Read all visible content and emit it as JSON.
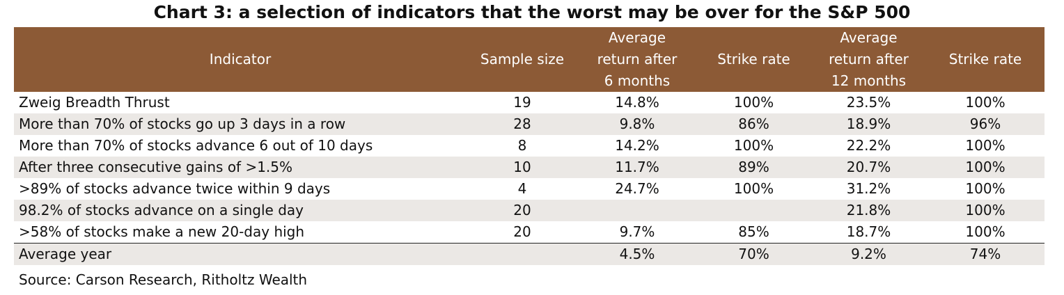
{
  "chart_data": {
    "type": "table",
    "title": "Chart 3: a selection of indicators that the worst may be over for the S&P 500",
    "columns": [
      "Indicator",
      "Sample size",
      "Average return after 6 months",
      "Strike rate",
      "Average return after 12 months",
      "Strike rate"
    ],
    "header_lines": [
      [
        "Indicator"
      ],
      [
        "Sample size"
      ],
      [
        "Average",
        "return after",
        "6 months"
      ],
      [
        "Strike rate"
      ],
      [
        "Average",
        "return after",
        "12 months"
      ],
      [
        "Strike rate"
      ]
    ],
    "rows": [
      [
        "Zweig Breadth Thrust",
        "19",
        "14.8%",
        "100%",
        "23.5%",
        "100%"
      ],
      [
        "More than 70% of stocks go up 3 days in a row",
        "28",
        "9.8%",
        "86%",
        "18.9%",
        "96%"
      ],
      [
        "More than 70% of stocks advance 6 out of 10 days",
        "8",
        "14.2%",
        "100%",
        "22.2%",
        "100%"
      ],
      [
        "After three consecutive gains of >1.5%",
        "10",
        "11.7%",
        "89%",
        "20.7%",
        "100%"
      ],
      [
        ">89% of stocks advance twice within 9 days",
        "4",
        "24.7%",
        "100%",
        "31.2%",
        "100%"
      ],
      [
        "98.2% of stocks advance on a single day",
        "20",
        "",
        "",
        "21.8%",
        "100%"
      ],
      [
        ">58% of stocks make a new 20-day high",
        "20",
        "9.7%",
        "85%",
        "18.7%",
        "100%"
      ]
    ],
    "summary_row": [
      "Average year",
      "",
      "4.5%",
      "70%",
      "9.2%",
      "74%"
    ],
    "source": "Source: Carson Research, Ritholtz Wealth"
  },
  "colors": {
    "header_background": "#8c5a36",
    "header_text": "#ffffff",
    "stripe_background": "#ebe8e5"
  }
}
